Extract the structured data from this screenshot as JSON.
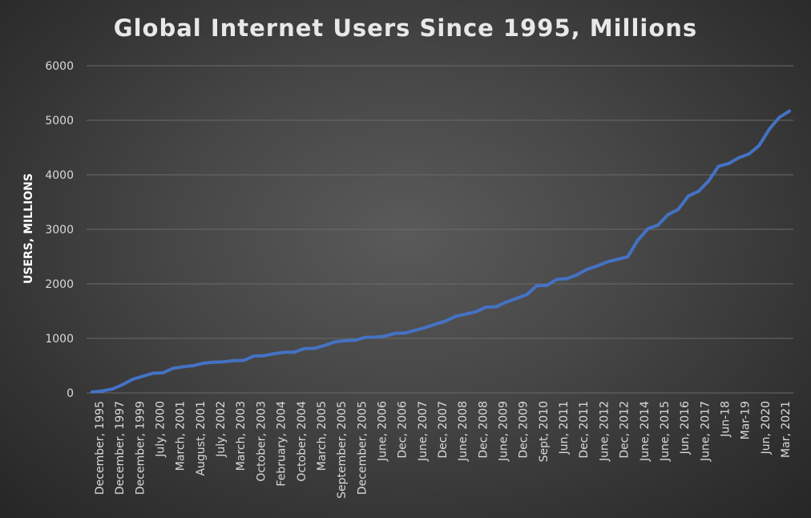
{
  "chart_data": {
    "type": "line",
    "title": "Global Internet Users Since 1995, Millions",
    "xlabel": "",
    "ylabel": "USERS, MILLIONS",
    "ylim": [
      0,
      6000
    ],
    "yticks": [
      0,
      1000,
      2000,
      3000,
      4000,
      5000,
      6000
    ],
    "grid": true,
    "legend": "none",
    "line_color": "#4472c4",
    "xtick_labels": [
      "December, 1995",
      "December, 1997",
      "December, 1999",
      "July, 2000",
      "March, 2001",
      "August, 2001",
      "July, 2002",
      "March, 2003",
      "October, 2003",
      "February, 2004",
      "October, 2004",
      "March, 2005",
      "September, 2005",
      "December, 2005",
      "June, 2006",
      "Dec, 2006",
      "June, 2007",
      "Dec, 2007",
      "June, 2008",
      "Dec, 2008",
      "June, 2009",
      "Dec, 2009",
      "Sept, 2010",
      "Jun, 2011",
      "Dec, 2011",
      "June, 2012",
      "Dec, 2012",
      "June, 2014",
      "June, 2015",
      "Jun, 2016",
      "June, 2017",
      "Jun-18",
      "Mar-19",
      "Jun, 2020",
      "Mar, 2021"
    ],
    "values": [
      16,
      36,
      70,
      150,
      248,
      304,
      361,
      367,
      451,
      479,
      500,
      544,
      563,
      571,
      591,
      596,
      677,
      683,
      719,
      745,
      745,
      812,
      817,
      870,
      934,
      957,
      964,
      1018,
      1022,
      1043,
      1093,
      1100,
      1150,
      1200,
      1262,
      1319,
      1407,
      1446,
      1490,
      1574,
      1581,
      1668,
      1733,
      1802,
      1966,
      1971,
      2084,
      2095,
      2168,
      2267,
      2330,
      2405,
      2450,
      2497,
      2802,
      3010,
      3079,
      3270,
      3366,
      3611,
      3696,
      3885,
      4157,
      4208,
      4313,
      4383,
      4536,
      4833,
      5053,
      5168
    ]
  }
}
